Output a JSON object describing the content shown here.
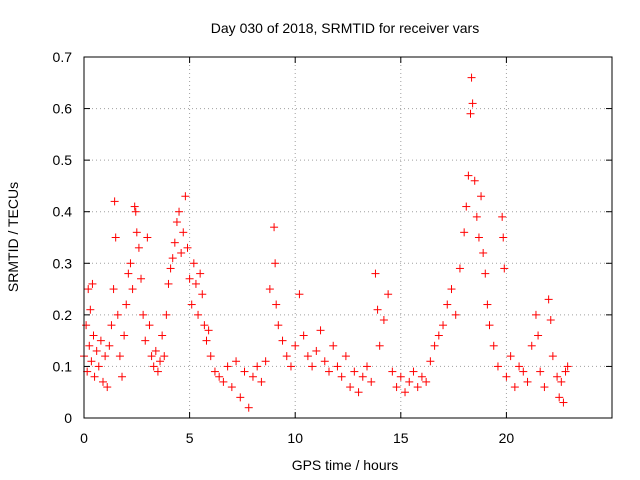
{
  "chart_data": {
    "type": "scatter",
    "title": "Day 030 of 2018, SRMTID for receiver vars",
    "xlabel": "GPS time / hours",
    "ylabel": "SRMTID / TECUs",
    "xlim": [
      0,
      25
    ],
    "ylim": [
      0,
      0.7
    ],
    "x_ticks": [
      0,
      5,
      10,
      15,
      20
    ],
    "x_tick_labels": [
      "0",
      "5",
      "10",
      "15",
      "20"
    ],
    "y_ticks": [
      0,
      0.1,
      0.2,
      0.3,
      0.4,
      0.5,
      0.6,
      0.7
    ],
    "y_tick_labels": [
      "0",
      "0.1",
      "0.2",
      "0.3",
      "0.4",
      "0.5",
      "0.6",
      "0.7"
    ],
    "grid": true,
    "legend": "none",
    "marker": "+",
    "color": "#ff0000",
    "series": [
      {
        "name": "SRMTID",
        "points": [
          [
            0.0,
            0.12
          ],
          [
            0.1,
            0.18
          ],
          [
            0.15,
            0.09
          ],
          [
            0.2,
            0.25
          ],
          [
            0.25,
            0.14
          ],
          [
            0.3,
            0.21
          ],
          [
            0.35,
            0.11
          ],
          [
            0.4,
            0.26
          ],
          [
            0.45,
            0.16
          ],
          [
            0.5,
            0.08
          ],
          [
            0.6,
            0.13
          ],
          [
            0.7,
            0.1
          ],
          [
            0.8,
            0.15
          ],
          [
            0.9,
            0.07
          ],
          [
            1.0,
            0.12
          ],
          [
            1.1,
            0.06
          ],
          [
            1.2,
            0.14
          ],
          [
            1.3,
            0.18
          ],
          [
            1.4,
            0.25
          ],
          [
            1.45,
            0.42
          ],
          [
            1.5,
            0.35
          ],
          [
            1.6,
            0.2
          ],
          [
            1.7,
            0.12
          ],
          [
            1.8,
            0.08
          ],
          [
            1.9,
            0.16
          ],
          [
            2.0,
            0.22
          ],
          [
            2.1,
            0.28
          ],
          [
            2.2,
            0.3
          ],
          [
            2.3,
            0.25
          ],
          [
            2.4,
            0.41
          ],
          [
            2.45,
            0.4
          ],
          [
            2.5,
            0.36
          ],
          [
            2.6,
            0.33
          ],
          [
            2.7,
            0.27
          ],
          [
            2.8,
            0.2
          ],
          [
            2.9,
            0.15
          ],
          [
            3.0,
            0.35
          ],
          [
            3.1,
            0.18
          ],
          [
            3.2,
            0.12
          ],
          [
            3.3,
            0.1
          ],
          [
            3.4,
            0.13
          ],
          [
            3.5,
            0.09
          ],
          [
            3.6,
            0.11
          ],
          [
            3.7,
            0.16
          ],
          [
            3.8,
            0.12
          ],
          [
            3.9,
            0.2
          ],
          [
            4.0,
            0.26
          ],
          [
            4.1,
            0.29
          ],
          [
            4.2,
            0.31
          ],
          [
            4.3,
            0.34
          ],
          [
            4.4,
            0.38
          ],
          [
            4.5,
            0.4
          ],
          [
            4.6,
            0.32
          ],
          [
            4.7,
            0.36
          ],
          [
            4.8,
            0.43
          ],
          [
            4.9,
            0.33
          ],
          [
            5.0,
            0.27
          ],
          [
            5.1,
            0.22
          ],
          [
            5.2,
            0.3
          ],
          [
            5.3,
            0.26
          ],
          [
            5.4,
            0.2
          ],
          [
            5.5,
            0.28
          ],
          [
            5.6,
            0.24
          ],
          [
            5.7,
            0.18
          ],
          [
            5.8,
            0.15
          ],
          [
            5.9,
            0.17
          ],
          [
            6.0,
            0.12
          ],
          [
            6.2,
            0.09
          ],
          [
            6.4,
            0.08
          ],
          [
            6.6,
            0.07
          ],
          [
            6.8,
            0.1
          ],
          [
            7.0,
            0.06
          ],
          [
            7.2,
            0.11
          ],
          [
            7.4,
            0.04
          ],
          [
            7.6,
            0.09
          ],
          [
            7.8,
            0.02
          ],
          [
            8.0,
            0.08
          ],
          [
            8.2,
            0.1
          ],
          [
            8.4,
            0.07
          ],
          [
            8.6,
            0.11
          ],
          [
            8.8,
            0.25
          ],
          [
            9.0,
            0.37
          ],
          [
            9.05,
            0.3
          ],
          [
            9.1,
            0.22
          ],
          [
            9.2,
            0.18
          ],
          [
            9.4,
            0.15
          ],
          [
            9.6,
            0.12
          ],
          [
            9.8,
            0.1
          ],
          [
            10.0,
            0.14
          ],
          [
            10.2,
            0.24
          ],
          [
            10.4,
            0.16
          ],
          [
            10.6,
            0.12
          ],
          [
            10.8,
            0.1
          ],
          [
            11.0,
            0.13
          ],
          [
            11.2,
            0.17
          ],
          [
            11.4,
            0.11
          ],
          [
            11.6,
            0.09
          ],
          [
            11.8,
            0.14
          ],
          [
            12.0,
            0.1
          ],
          [
            12.2,
            0.08
          ],
          [
            12.4,
            0.12
          ],
          [
            12.6,
            0.06
          ],
          [
            12.8,
            0.09
          ],
          [
            13.0,
            0.05
          ],
          [
            13.2,
            0.08
          ],
          [
            13.4,
            0.1
          ],
          [
            13.6,
            0.07
          ],
          [
            13.8,
            0.28
          ],
          [
            13.9,
            0.21
          ],
          [
            14.0,
            0.14
          ],
          [
            14.2,
            0.19
          ],
          [
            14.4,
            0.24
          ],
          [
            14.6,
            0.09
          ],
          [
            14.8,
            0.06
          ],
          [
            15.0,
            0.08
          ],
          [
            15.2,
            0.05
          ],
          [
            15.4,
            0.07
          ],
          [
            15.6,
            0.09
          ],
          [
            15.8,
            0.06
          ],
          [
            16.0,
            0.08
          ],
          [
            16.2,
            0.07
          ],
          [
            16.4,
            0.11
          ],
          [
            16.6,
            0.14
          ],
          [
            16.8,
            0.16
          ],
          [
            17.0,
            0.18
          ],
          [
            17.2,
            0.22
          ],
          [
            17.4,
            0.25
          ],
          [
            17.6,
            0.2
          ],
          [
            17.8,
            0.29
          ],
          [
            18.0,
            0.36
          ],
          [
            18.1,
            0.41
          ],
          [
            18.2,
            0.47
          ],
          [
            18.3,
            0.59
          ],
          [
            18.35,
            0.66
          ],
          [
            18.4,
            0.61
          ],
          [
            18.5,
            0.46
          ],
          [
            18.6,
            0.39
          ],
          [
            18.7,
            0.35
          ],
          [
            18.8,
            0.43
          ],
          [
            18.9,
            0.32
          ],
          [
            19.0,
            0.28
          ],
          [
            19.1,
            0.22
          ],
          [
            19.2,
            0.18
          ],
          [
            19.4,
            0.14
          ],
          [
            19.6,
            0.1
          ],
          [
            19.8,
            0.39
          ],
          [
            19.85,
            0.35
          ],
          [
            19.9,
            0.29
          ],
          [
            20.0,
            0.08
          ],
          [
            20.2,
            0.12
          ],
          [
            20.4,
            0.06
          ],
          [
            20.6,
            0.1
          ],
          [
            20.8,
            0.09
          ],
          [
            21.0,
            0.07
          ],
          [
            21.2,
            0.14
          ],
          [
            21.4,
            0.2
          ],
          [
            21.5,
            0.16
          ],
          [
            21.6,
            0.09
          ],
          [
            21.8,
            0.06
          ],
          [
            22.0,
            0.23
          ],
          [
            22.1,
            0.19
          ],
          [
            22.2,
            0.12
          ],
          [
            22.4,
            0.08
          ],
          [
            22.5,
            0.04
          ],
          [
            22.6,
            0.07
          ],
          [
            22.7,
            0.03
          ],
          [
            22.8,
            0.09
          ],
          [
            22.9,
            0.1
          ]
        ]
      }
    ]
  }
}
